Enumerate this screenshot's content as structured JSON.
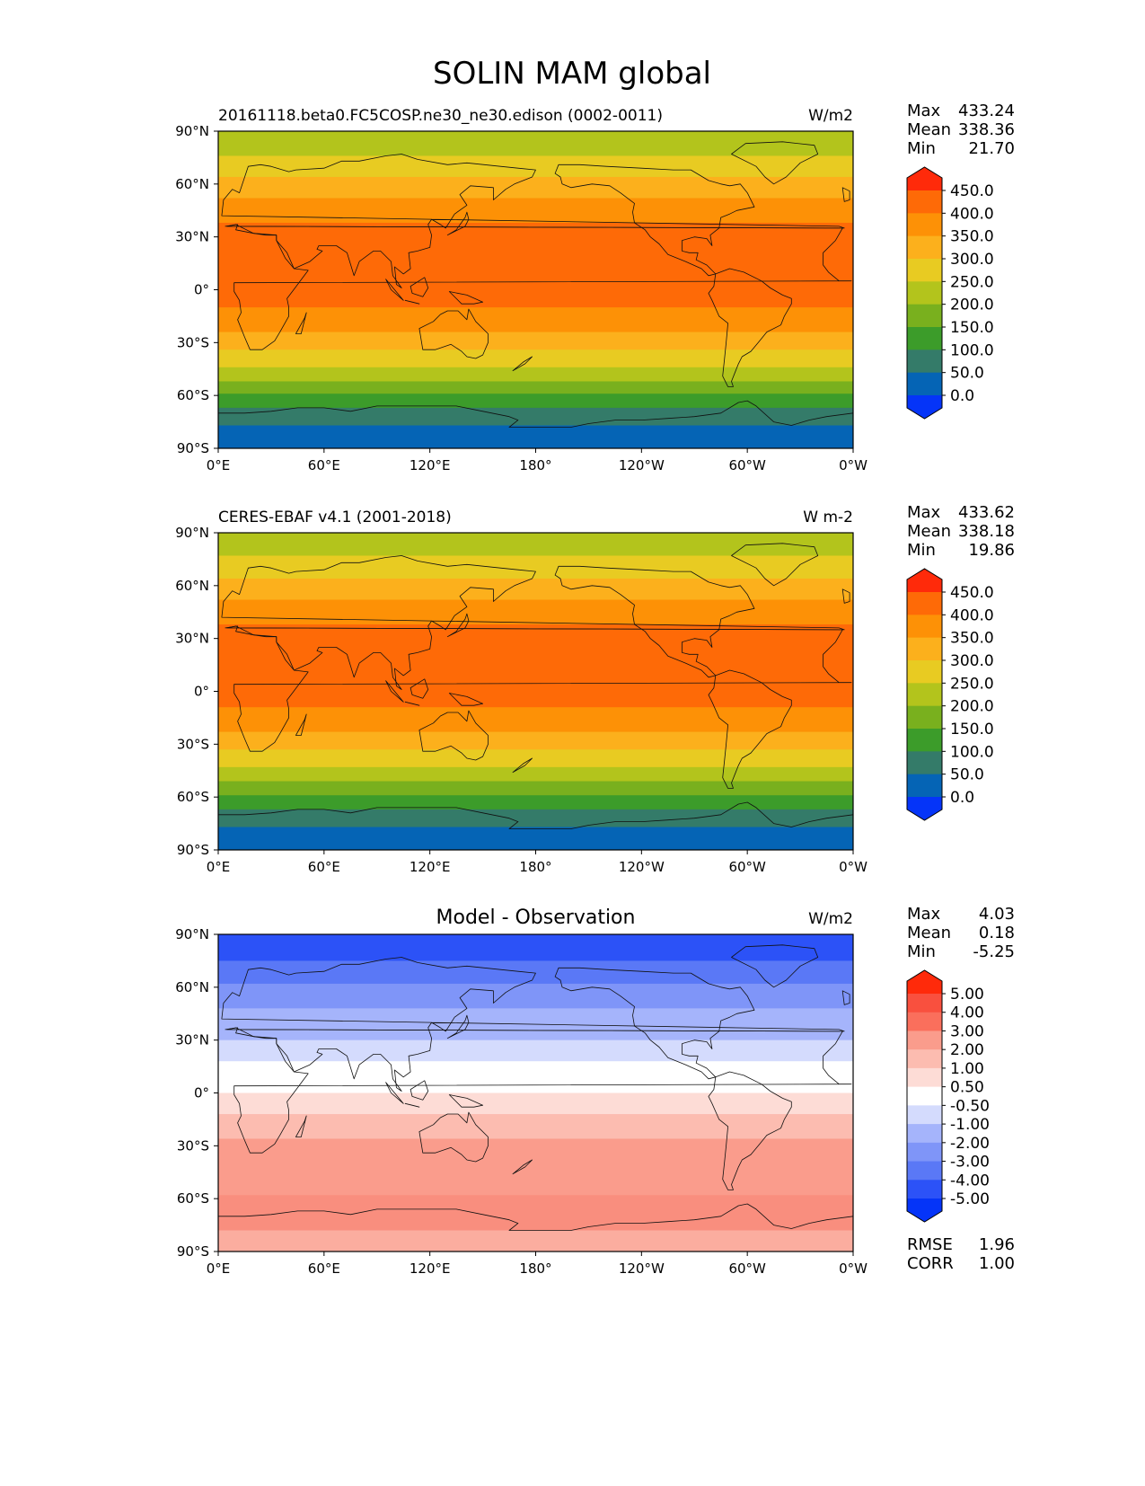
{
  "figure": {
    "title": "SOLIN MAM global"
  },
  "chart_data": [
    {
      "type": "heatmap",
      "title_left": "20161118.beta0.FC5COSP.ne30_ne30.edison (0002-0011)",
      "title_center": "",
      "units": "W/m2",
      "stats": {
        "max_label": "Max",
        "max": "433.24",
        "mean_label": "Mean",
        "mean": "338.36",
        "min_label": "Min",
        "min": "21.70"
      },
      "xlim": [
        0,
        360
      ],
      "ylim": [
        -90,
        90
      ],
      "xticks": [
        "0°E",
        "60°E",
        "120°E",
        "180°",
        "120°W",
        "60°W",
        "0°W"
      ],
      "yticks": [
        "90°N",
        "60°N",
        "30°N",
        "0°",
        "30°S",
        "60°S",
        "90°S"
      ],
      "bands": [
        {
          "lat_from": 76,
          "lat_to": 90,
          "color": "#b3c41c"
        },
        {
          "lat_from": 64,
          "lat_to": 76,
          "color": "#e8cb22"
        },
        {
          "lat_from": 52,
          "lat_to": 64,
          "color": "#fcb01c"
        },
        {
          "lat_from": 38,
          "lat_to": 52,
          "color": "#fd9106"
        },
        {
          "lat_from": -10,
          "lat_to": 38,
          "color": "#fe6a07"
        },
        {
          "lat_from": -24,
          "lat_to": -10,
          "color": "#fd9106"
        },
        {
          "lat_from": -34,
          "lat_to": -24,
          "color": "#fcb01c"
        },
        {
          "lat_from": -44,
          "lat_to": -34,
          "color": "#e8cb22"
        },
        {
          "lat_from": -52,
          "lat_to": -44,
          "color": "#b3c41c"
        },
        {
          "lat_from": -59,
          "lat_to": -52,
          "color": "#79b01e"
        },
        {
          "lat_from": -67,
          "lat_to": -59,
          "color": "#3c9c2a"
        },
        {
          "lat_from": -77,
          "lat_to": -67,
          "color": "#347b69"
        },
        {
          "lat_from": -90,
          "lat_to": -77,
          "color": "#0564b5"
        }
      ],
      "colorbar": {
        "labels": [
          "450.0",
          "400.0",
          "350.0",
          "300.0",
          "250.0",
          "200.0",
          "150.0",
          "100.0",
          "50.0",
          "0.0"
        ],
        "colors": [
          "#ff2a0a",
          "#fe6a07",
          "#fd9106",
          "#fcb01c",
          "#e8cb22",
          "#b3c41c",
          "#79b01e",
          "#3c9c2a",
          "#347b69",
          "#0564b5",
          "#0534f8"
        ]
      }
    },
    {
      "type": "heatmap",
      "title_left": "CERES-EBAF v4.1 (2001-2018)",
      "title_center": "",
      "units": "W m-2",
      "stats": {
        "max_label": "Max",
        "max": "433.62",
        "mean_label": "Mean",
        "mean": "338.18",
        "min_label": "Min",
        "min": "19.86"
      },
      "xlim": [
        0,
        360
      ],
      "ylim": [
        -90,
        90
      ],
      "xticks": [
        "0°E",
        "60°E",
        "120°E",
        "180°",
        "120°W",
        "60°W",
        "0°W"
      ],
      "yticks": [
        "90°N",
        "60°N",
        "30°N",
        "0°",
        "30°S",
        "60°S",
        "90°S"
      ],
      "bands": [
        {
          "lat_from": 77,
          "lat_to": 90,
          "color": "#b3c41c"
        },
        {
          "lat_from": 64,
          "lat_to": 77,
          "color": "#e8cb22"
        },
        {
          "lat_from": 52,
          "lat_to": 64,
          "color": "#fcb01c"
        },
        {
          "lat_from": 38,
          "lat_to": 52,
          "color": "#fd9106"
        },
        {
          "lat_from": -9,
          "lat_to": 38,
          "color": "#fe6a07"
        },
        {
          "lat_from": -23,
          "lat_to": -9,
          "color": "#fd9106"
        },
        {
          "lat_from": -33,
          "lat_to": -23,
          "color": "#fcb01c"
        },
        {
          "lat_from": -43,
          "lat_to": -33,
          "color": "#e8cb22"
        },
        {
          "lat_from": -51,
          "lat_to": -43,
          "color": "#b3c41c"
        },
        {
          "lat_from": -59,
          "lat_to": -51,
          "color": "#79b01e"
        },
        {
          "lat_from": -67,
          "lat_to": -59,
          "color": "#3c9c2a"
        },
        {
          "lat_from": -77,
          "lat_to": -67,
          "color": "#347b69"
        },
        {
          "lat_from": -90,
          "lat_to": -77,
          "color": "#0564b5"
        }
      ],
      "colorbar": {
        "labels": [
          "450.0",
          "400.0",
          "350.0",
          "300.0",
          "250.0",
          "200.0",
          "150.0",
          "100.0",
          "50.0",
          "0.0"
        ],
        "colors": [
          "#ff2a0a",
          "#fe6a07",
          "#fd9106",
          "#fcb01c",
          "#e8cb22",
          "#b3c41c",
          "#79b01e",
          "#3c9c2a",
          "#347b69",
          "#0564b5",
          "#0534f8"
        ]
      }
    },
    {
      "type": "heatmap",
      "title_left": "",
      "title_center": "Model - Observation",
      "units": "W/m2",
      "stats": {
        "max_label": "Max",
        "max": "4.03",
        "mean_label": "Mean",
        "mean": "0.18",
        "min_label": "Min",
        "min": "-5.25"
      },
      "metrics": {
        "rmse_label": "RMSE",
        "rmse": "1.96",
        "corr_label": "CORR",
        "corr": "1.00"
      },
      "xlim": [
        0,
        360
      ],
      "ylim": [
        -90,
        90
      ],
      "xticks": [
        "0°E",
        "60°E",
        "120°E",
        "180°",
        "120°W",
        "60°W",
        "0°W"
      ],
      "yticks": [
        "90°N",
        "60°N",
        "30°N",
        "0°",
        "30°S",
        "60°S",
        "90°S"
      ],
      "bands": [
        {
          "lat_from": 75,
          "lat_to": 90,
          "color": "#2c52f7"
        },
        {
          "lat_from": 62,
          "lat_to": 75,
          "color": "#5a78f6"
        },
        {
          "lat_from": 48,
          "lat_to": 62,
          "color": "#7f95f8"
        },
        {
          "lat_from": 30,
          "lat_to": 48,
          "color": "#a5b4fb"
        },
        {
          "lat_from": 18,
          "lat_to": 30,
          "color": "#d4dbfd"
        },
        {
          "lat_from": 0,
          "lat_to": 18,
          "color": "#ffffff"
        },
        {
          "lat_from": -12,
          "lat_to": 0,
          "color": "#fddcd6"
        },
        {
          "lat_from": -26,
          "lat_to": -12,
          "color": "#fcbcb0"
        },
        {
          "lat_from": -58,
          "lat_to": -26,
          "color": "#fa9c8c"
        },
        {
          "lat_from": -78,
          "lat_to": -58,
          "color": "#f98e7e"
        },
        {
          "lat_from": -90,
          "lat_to": -78,
          "color": "#fbad9f"
        }
      ],
      "colorbar": {
        "labels": [
          "5.00",
          "4.00",
          "3.00",
          "2.00",
          "1.00",
          "0.50",
          "-0.50",
          "-1.00",
          "-2.00",
          "-3.00",
          "-4.00",
          "-5.00"
        ],
        "colors": [
          "#ff2a0a",
          "#f9503e",
          "#fa6f5c",
          "#fa9c8c",
          "#fcbcb0",
          "#fddcd6",
          "#ffffff",
          "#d4dbfd",
          "#a5b4fb",
          "#7f95f8",
          "#5a78f6",
          "#2c52f7",
          "#0534f8"
        ]
      }
    }
  ]
}
